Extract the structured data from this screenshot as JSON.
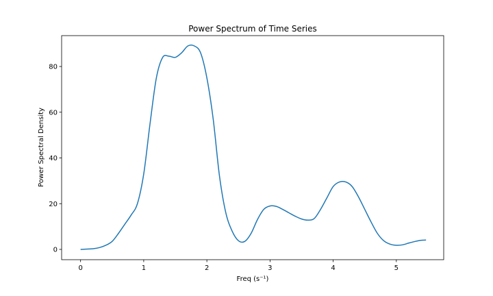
{
  "chart_data": {
    "type": "line",
    "title": "Power Spectrum of Time Series",
    "xlabel": "Freq (s⁻¹)",
    "ylabel": "Power Spectral Density",
    "xlim": [
      -0.3,
      5.75
    ],
    "ylim": [
      -4.5,
      93.5
    ],
    "x_ticks": [
      0,
      1,
      2,
      3,
      4,
      5
    ],
    "y_ticks": [
      0,
      20,
      40,
      60,
      80
    ],
    "grid": false,
    "legend": "none",
    "line_color": "#1f77b4",
    "series": [
      {
        "x": [
          0,
          0.2,
          0.3,
          0.4,
          0.5,
          0.6,
          0.7,
          0.8,
          0.9,
          1.0,
          1.1,
          1.2,
          1.3,
          1.4,
          1.5,
          1.6,
          1.7,
          1.8,
          1.9,
          2.0,
          2.1,
          2.2,
          2.3,
          2.4,
          2.5,
          2.6,
          2.7,
          2.8,
          2.9,
          3.0,
          3.1,
          3.2,
          3.3,
          3.4,
          3.5,
          3.6,
          3.7,
          3.8,
          3.9,
          4.0,
          4.1,
          4.2,
          4.3,
          4.4,
          4.5,
          4.6,
          4.7,
          4.8,
          4.9,
          5.0,
          5.1,
          5.2,
          5.3,
          5.4,
          5.47
        ],
        "y": [
          0,
          0.3,
          0.8,
          1.8,
          3.5,
          7,
          11,
          15,
          20,
          33,
          55,
          75,
          84,
          84.5,
          84,
          86,
          89,
          89,
          86,
          75,
          57,
          32,
          16,
          8,
          3.8,
          3.5,
          7,
          13,
          17.5,
          19,
          18.8,
          17.5,
          16,
          14.5,
          13.3,
          12.8,
          13.5,
          17.5,
          22.5,
          27.5,
          29.5,
          29.5,
          27.5,
          23,
          17.5,
          12,
          7,
          3.8,
          2.3,
          1.8,
          2,
          2.8,
          3.5,
          4.0,
          4.1
        ]
      }
    ]
  }
}
